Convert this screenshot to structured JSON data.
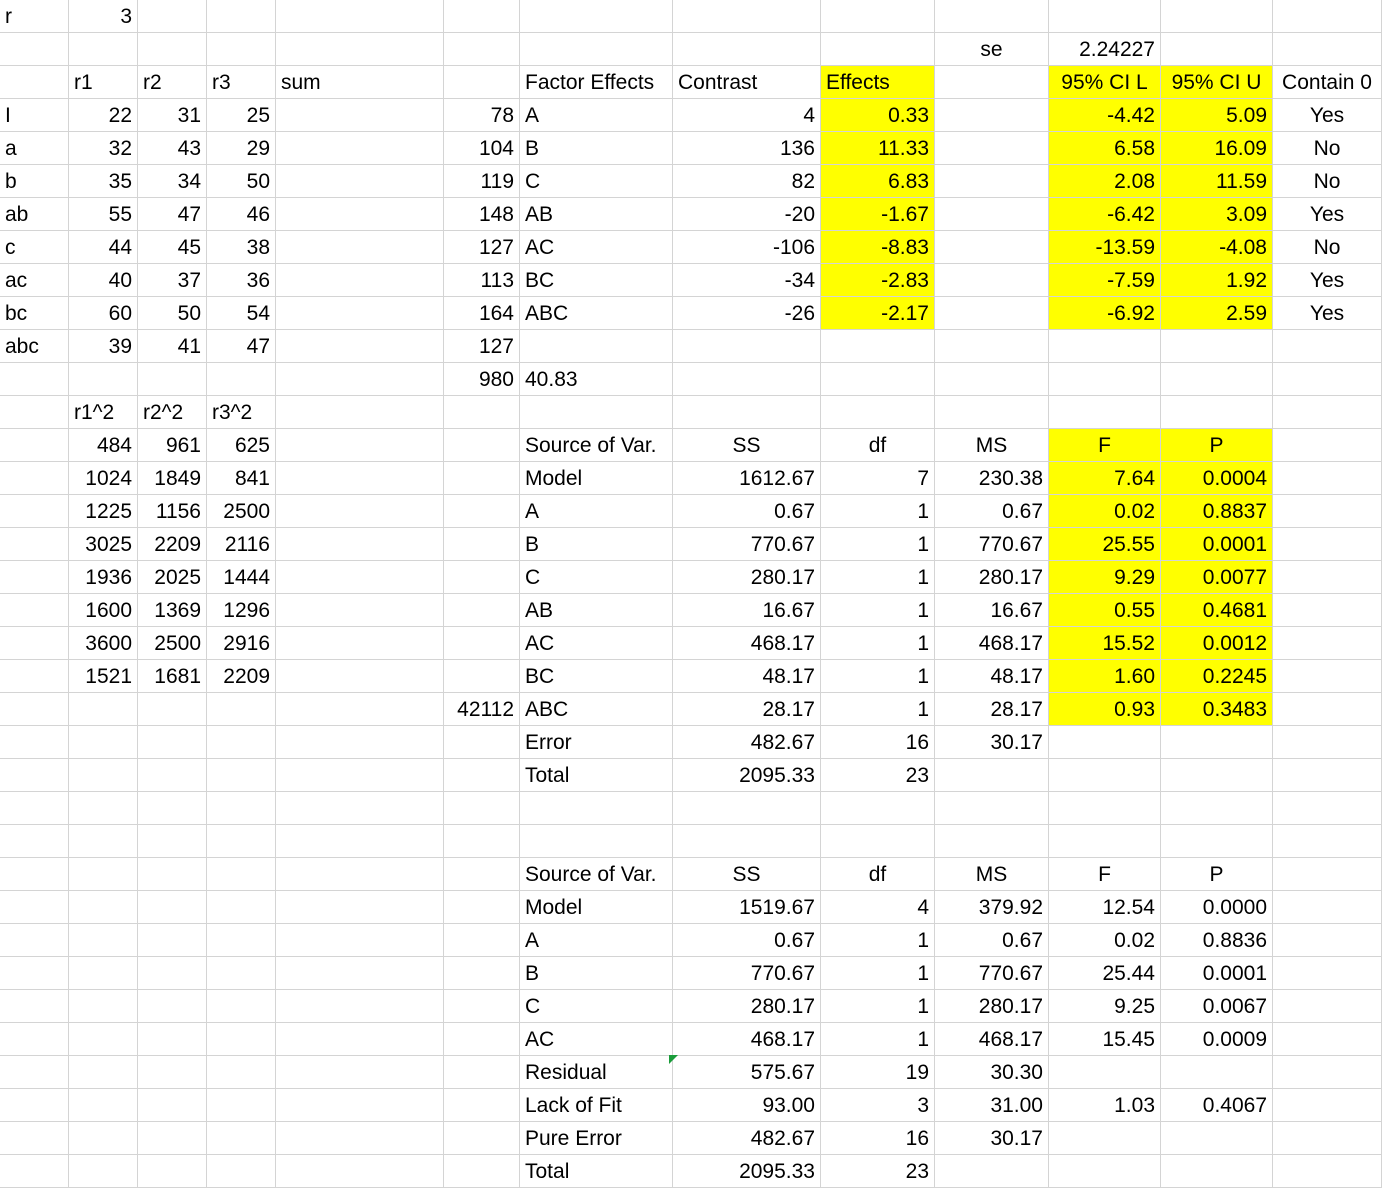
{
  "colors": {
    "highlight": "#ffff00",
    "gridline": "#d4d4d4",
    "note_flag": "#1a9c3a"
  },
  "r_label": "r",
  "r_value": "3",
  "se_label": "se",
  "se_value": "2.24227",
  "data_headers": [
    "r1",
    "r2",
    "r3",
    "sum"
  ],
  "data_rows": [
    {
      "label": "I",
      "r1": "22",
      "r2": "31",
      "r3": "25",
      "sum": "78"
    },
    {
      "label": "a",
      "r1": "32",
      "r2": "43",
      "r3": "29",
      "sum": "104"
    },
    {
      "label": "b",
      "r1": "35",
      "r2": "34",
      "r3": "50",
      "sum": "119"
    },
    {
      "label": "ab",
      "r1": "55",
      "r2": "47",
      "r3": "46",
      "sum": "148"
    },
    {
      "label": "c",
      "r1": "44",
      "r2": "45",
      "r3": "38",
      "sum": "127"
    },
    {
      "label": "ac",
      "r1": "40",
      "r2": "37",
      "r3": "36",
      "sum": "113"
    },
    {
      "label": "bc",
      "r1": "60",
      "r2": "50",
      "r3": "54",
      "sum": "164"
    },
    {
      "label": "abc",
      "r1": "39",
      "r2": "41",
      "r3": "47",
      "sum": "127"
    }
  ],
  "grand_total": "980",
  "grand_mean": "40.83",
  "sq_headers": [
    "r1^2",
    "r2^2",
    "r3^2"
  ],
  "sq_rows": [
    [
      "484",
      "961",
      "625"
    ],
    [
      "1024",
      "1849",
      "841"
    ],
    [
      "1225",
      "1156",
      "2500"
    ],
    [
      "3025",
      "2209",
      "2116"
    ],
    [
      "1936",
      "2025",
      "1444"
    ],
    [
      "1600",
      "1369",
      "1296"
    ],
    [
      "3600",
      "2500",
      "2916"
    ],
    [
      "1521",
      "1681",
      "2209"
    ]
  ],
  "sum_sq": "42112",
  "effects_headers": [
    "Factor Effects",
    "Contrast",
    "Effects",
    "95% CI L",
    "95% CI U",
    "Contain 0"
  ],
  "effects_rows": [
    {
      "factor": "A",
      "contrast": "4",
      "effect": "0.33",
      "ci_l": "-4.42",
      "ci_u": "5.09",
      "contain": "Yes"
    },
    {
      "factor": "B",
      "contrast": "136",
      "effect": "11.33",
      "ci_l": "6.58",
      "ci_u": "16.09",
      "contain": "No"
    },
    {
      "factor": "C",
      "contrast": "82",
      "effect": "6.83",
      "ci_l": "2.08",
      "ci_u": "11.59",
      "contain": "No"
    },
    {
      "factor": "AB",
      "contrast": "-20",
      "effect": "-1.67",
      "ci_l": "-6.42",
      "ci_u": "3.09",
      "contain": "Yes"
    },
    {
      "factor": "AC",
      "contrast": "-106",
      "effect": "-8.83",
      "ci_l": "-13.59",
      "ci_u": "-4.08",
      "contain": "No"
    },
    {
      "factor": "BC",
      "contrast": "-34",
      "effect": "-2.83",
      "ci_l": "-7.59",
      "ci_u": "1.92",
      "contain": "Yes"
    },
    {
      "factor": "ABC",
      "contrast": "-26",
      "effect": "-2.17",
      "ci_l": "-6.92",
      "ci_u": "2.59",
      "contain": "Yes"
    }
  ],
  "anova_headers": [
    "Source of Var.",
    "SS",
    "df",
    "MS",
    "F",
    "P"
  ],
  "anova1": [
    {
      "source": "Model",
      "ss": "1612.67",
      "df": "7",
      "ms": "230.38",
      "f": "7.64",
      "p": "0.0004"
    },
    {
      "source": "A",
      "ss": "0.67",
      "df": "1",
      "ms": "0.67",
      "f": "0.02",
      "p": "0.8837"
    },
    {
      "source": "B",
      "ss": "770.67",
      "df": "1",
      "ms": "770.67",
      "f": "25.55",
      "p": "0.0001"
    },
    {
      "source": "C",
      "ss": "280.17",
      "df": "1",
      "ms": "280.17",
      "f": "9.29",
      "p": "0.0077"
    },
    {
      "source": "AB",
      "ss": "16.67",
      "df": "1",
      "ms": "16.67",
      "f": "0.55",
      "p": "0.4681"
    },
    {
      "source": "AC",
      "ss": "468.17",
      "df": "1",
      "ms": "468.17",
      "f": "15.52",
      "p": "0.0012"
    },
    {
      "source": "BC",
      "ss": "48.17",
      "df": "1",
      "ms": "48.17",
      "f": "1.60",
      "p": "0.2245"
    },
    {
      "source": "ABC",
      "ss": "28.17",
      "df": "1",
      "ms": "28.17",
      "f": "0.93",
      "p": "0.3483"
    },
    {
      "source": "Error",
      "ss": "482.67",
      "df": "16",
      "ms": "30.17",
      "f": "",
      "p": ""
    },
    {
      "source": "Total",
      "ss": "2095.33",
      "df": "23",
      "ms": "",
      "f": "",
      "p": ""
    }
  ],
  "anova2": [
    {
      "source": "Model",
      "ss": "1519.67",
      "df": "4",
      "ms": "379.92",
      "f": "12.54",
      "p": "0.0000"
    },
    {
      "source": "A",
      "ss": "0.67",
      "df": "1",
      "ms": "0.67",
      "f": "0.02",
      "p": "0.8836"
    },
    {
      "source": "B",
      "ss": "770.67",
      "df": "1",
      "ms": "770.67",
      "f": "25.44",
      "p": "0.0001"
    },
    {
      "source": "C",
      "ss": "280.17",
      "df": "1",
      "ms": "280.17",
      "f": "9.25",
      "p": "0.0067"
    },
    {
      "source": "AC",
      "ss": "468.17",
      "df": "1",
      "ms": "468.17",
      "f": "15.45",
      "p": "0.0009"
    },
    {
      "source": "Residual",
      "ss": "575.67",
      "df": "19",
      "ms": "30.30",
      "f": "",
      "p": ""
    },
    {
      "source": "Lack of Fit",
      "ss": "93.00",
      "df": "3",
      "ms": "31.00",
      "f": "1.03",
      "p": "0.4067"
    },
    {
      "source": "Pure Error",
      "ss": "482.67",
      "df": "16",
      "ms": "30.17",
      "f": "",
      "p": ""
    },
    {
      "source": "Total",
      "ss": "2095.33",
      "df": "23",
      "ms": "",
      "f": "",
      "p": ""
    }
  ]
}
